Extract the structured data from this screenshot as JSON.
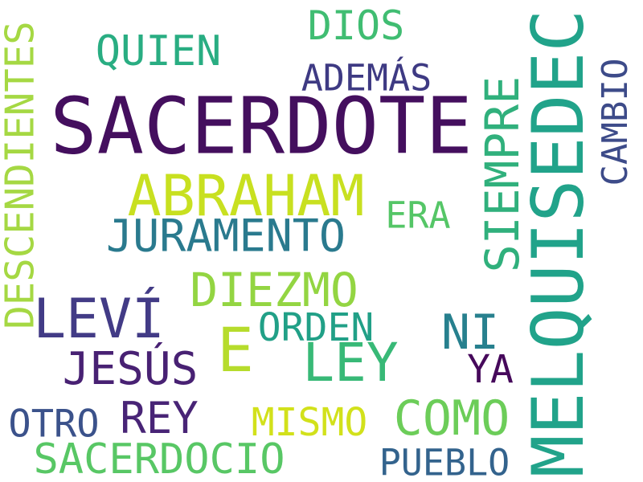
{
  "words": [
    {
      "text": "SACERDOTE",
      "color": "#440f5e"
    },
    {
      "text": "MELQUISEDEC",
      "color": "#21a38a"
    },
    {
      "text": "ABRAHAM",
      "color": "#c8e020"
    },
    {
      "text": "DESCENDIENTES",
      "color": "#a5d843"
    },
    {
      "text": "LEVÍ",
      "color": "#423b86"
    },
    {
      "text": "DIEZMO",
      "color": "#93d542"
    },
    {
      "text": "E",
      "color": "#b6dc2c"
    },
    {
      "text": "LEY",
      "color": "#38b977"
    },
    {
      "text": "JURAMENTO",
      "color": "#2a7a8e"
    },
    {
      "text": "SIEMPRE",
      "color": "#30b07c"
    },
    {
      "text": "QUIEN",
      "color": "#29ad82"
    },
    {
      "text": "DIOS",
      "color": "#40bd72"
    },
    {
      "text": "ADEMÁS",
      "color": "#3e3a83"
    },
    {
      "text": "CAMBIO",
      "color": "#3d4b89"
    },
    {
      "text": "ERA",
      "color": "#55c667"
    },
    {
      "text": "JESÚS",
      "color": "#482173"
    },
    {
      "text": "ORDEN",
      "color": "#21a087"
    },
    {
      "text": "NI",
      "color": "#27808e"
    },
    {
      "text": "YA",
      "color": "#46095b"
    },
    {
      "text": "COMO",
      "color": "#6ccd59"
    },
    {
      "text": "REY",
      "color": "#482476"
    },
    {
      "text": "MISMO",
      "color": "#d2e11b"
    },
    {
      "text": "OTRO",
      "color": "#3b528b"
    },
    {
      "text": "SACERDOCIO",
      "color": "#58c765"
    },
    {
      "text": "PUEBLO",
      "color": "#33638d"
    }
  ]
}
